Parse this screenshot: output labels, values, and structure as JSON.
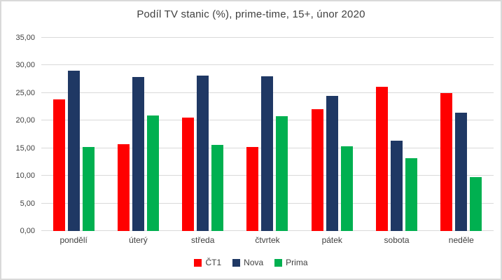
{
  "title": "Podíl TV stanic (%), prime-time, 15+, únor 2020",
  "colors": {
    "ct1": "#FF0000",
    "nova": "#1F3864",
    "prima": "#00B050",
    "gridline": "#D9D9D9",
    "text": "#404040",
    "frame_border": "#D9D9D9"
  },
  "chart_data": {
    "type": "bar",
    "title": "Podíl TV stanic (%), prime-time, 15+, únor 2020",
    "categories": [
      "pondělí",
      "úterý",
      "středa",
      "čtvrtek",
      "pátek",
      "sobota",
      "neděle"
    ],
    "series": [
      {
        "name": "ČT1",
        "color": "#FF0000",
        "values": [
          23.8,
          15.7,
          20.5,
          15.2,
          22.1,
          26.1,
          25.0
        ]
      },
      {
        "name": "Nova",
        "color": "#1F3864",
        "values": [
          29.1,
          27.9,
          28.2,
          28.0,
          24.5,
          16.3,
          21.4
        ]
      },
      {
        "name": "Prima",
        "color": "#00B050",
        "values": [
          15.2,
          20.9,
          15.6,
          20.8,
          15.3,
          13.2,
          9.8
        ]
      }
    ],
    "xlabel": "",
    "ylabel": "",
    "ylim": [
      0,
      35
    ],
    "ytick_step": 5,
    "ytick_labels": [
      "0,00",
      "5,00",
      "10,00",
      "15,00",
      "20,00",
      "25,00",
      "30,00",
      "35,00"
    ],
    "grid": true,
    "legend_position": "bottom"
  }
}
